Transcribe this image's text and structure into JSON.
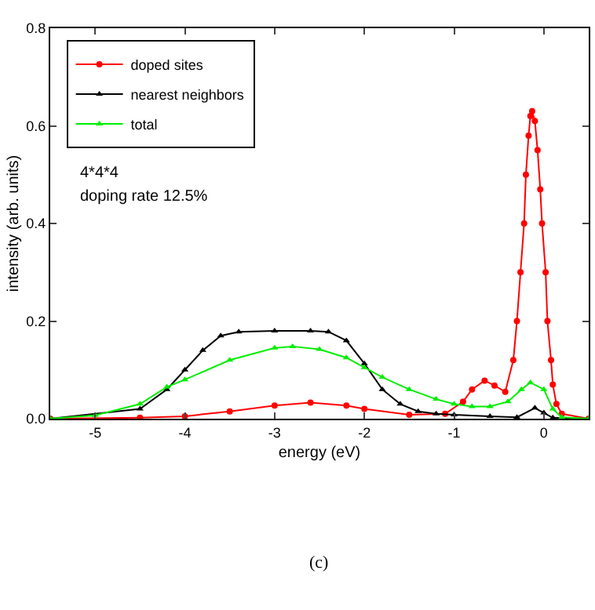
{
  "chart_data": {
    "type": "line",
    "xlabel": "energy (eV)",
    "ylabel": "intensity (arb. units)",
    "xlim": [
      -5.5,
      0.5
    ],
    "ylim": [
      0,
      0.8
    ],
    "xticks": [
      -5,
      -4,
      -3,
      -2,
      -1,
      0
    ],
    "yticks": [
      {
        "value": 0,
        "label": "0.0"
      },
      0.2,
      0.4,
      0.6,
      0.8
    ],
    "grid": false,
    "legend": "top left",
    "line_style": "solid",
    "annotations": [
      "4*4*4",
      "doping rate 12.5%",
      "(c)"
    ],
    "series": [
      {
        "name": "doped sites",
        "color": "#ff0000",
        "marker": "circle",
        "x": [
          -5.5,
          -4.5,
          -4,
          -3.5,
          -3,
          -2.6,
          -2.2,
          -2,
          -1.5,
          -1.1,
          -0.9,
          -0.8,
          -0.66,
          -0.55,
          -0.43,
          -0.34,
          -0.3,
          -0.26,
          -0.22,
          -0.2,
          -0.17,
          -0.15,
          -0.13,
          -0.1,
          -0.07,
          -0.04,
          -0.02,
          0.02,
          0.04,
          0.08,
          0.1,
          0.14,
          0.2,
          0.5
        ],
        "values": [
          0,
          0.002,
          0.005,
          0.015,
          0.027,
          0.033,
          0.027,
          0.02,
          0.008,
          0.01,
          0.035,
          0.06,
          0.078,
          0.068,
          0.055,
          0.12,
          0.2,
          0.3,
          0.4,
          0.5,
          0.58,
          0.62,
          0.63,
          0.61,
          0.55,
          0.47,
          0.4,
          0.3,
          0.2,
          0.12,
          0.07,
          0.03,
          0.01,
          0
        ]
      },
      {
        "name": "nearest neighbors",
        "color": "#000000",
        "marker": "triangle",
        "x": [
          -5.5,
          -4.5,
          -4.2,
          -4,
          -3.8,
          -3.6,
          -3.4,
          -3,
          -2.6,
          -2.4,
          -2.2,
          -2,
          -1.8,
          -1.6,
          -1.4,
          -1.2,
          -1,
          -0.6,
          -0.3,
          -0.1,
          0,
          0.1,
          0.5
        ],
        "values": [
          0,
          0.02,
          0.06,
          0.1,
          0.14,
          0.17,
          0.178,
          0.18,
          0.18,
          0.178,
          0.16,
          0.113,
          0.06,
          0.03,
          0.015,
          0.01,
          0.008,
          0.005,
          0.003,
          0.022,
          0.012,
          0.002,
          0
        ]
      },
      {
        "name": "total",
        "color": "#00ee00",
        "marker": "triangle",
        "x": [
          -5.5,
          -5,
          -4.5,
          -4.2,
          -4,
          -3.5,
          -3,
          -2.8,
          -2.5,
          -2.2,
          -2,
          -1.8,
          -1.5,
          -1.2,
          -1,
          -0.8,
          -0.6,
          -0.4,
          -0.25,
          -0.15,
          0,
          0.1,
          0.2,
          0.5
        ],
        "values": [
          0,
          0.007,
          0.03,
          0.065,
          0.08,
          0.12,
          0.145,
          0.148,
          0.142,
          0.125,
          0.105,
          0.085,
          0.06,
          0.04,
          0.03,
          0.025,
          0.025,
          0.035,
          0.06,
          0.074,
          0.06,
          0.02,
          0.003,
          0
        ]
      }
    ]
  }
}
